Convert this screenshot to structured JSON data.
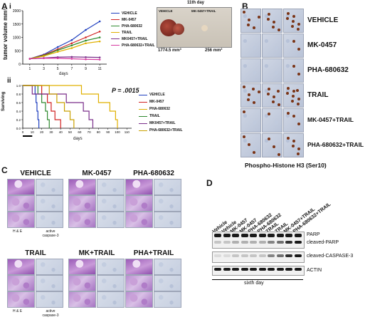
{
  "panel_labels": {
    "A": "A",
    "i": "i",
    "ii": "ii",
    "B": "B",
    "C": "C",
    "D": "D"
  },
  "panel_a_i": {
    "chart_data": {
      "type": "line",
      "ylabel": "tumor volume mm³",
      "xlabel": "days",
      "x": [
        1,
        3,
        5,
        7,
        9,
        11
      ],
      "ylim": [
        0,
        2000
      ],
      "yticks": [
        "0",
        "500",
        "1000",
        "1500",
        "2000"
      ],
      "series": [
        {
          "name": "VEHICLE",
          "color": "#1f3fbf",
          "values": [
            200,
            360,
            640,
            900,
            1280,
            1600
          ]
        },
        {
          "name": "MK-0457",
          "color": "#d12222",
          "values": [
            200,
            340,
            560,
            780,
            1000,
            1220
          ]
        },
        {
          "name": "PHA-680632",
          "color": "#2f8a2f",
          "values": [
            200,
            320,
            520,
            700,
            880,
            1000
          ]
        },
        {
          "name": "TRAIL",
          "color": "#e0b000",
          "values": [
            200,
            300,
            460,
            600,
            780,
            850
          ]
        },
        {
          "name": "MK0457+TRAIL",
          "color": "#7a2e8a",
          "values": [
            200,
            230,
            260,
            270,
            260,
            250
          ]
        },
        {
          "name": "PHA-680632+TRAIL",
          "color": "#d63aa0",
          "values": [
            200,
            220,
            220,
            200,
            180,
            170
          ]
        }
      ]
    },
    "photo_title": "11th day",
    "photo_left_label": "VEHICLE",
    "photo_right_label": "MK-0457+TRAIL",
    "vol_left": "1774.5 mm³",
    "vol_right": "256 mm³"
  },
  "panel_a_ii": {
    "chart_data": {
      "type": "line",
      "ylabel": "Surviving",
      "xlabel": "days",
      "x_ticks": [
        "0",
        "10",
        "20",
        "30",
        "40",
        "50",
        "60",
        "70",
        "80",
        "90",
        "100",
        "110"
      ],
      "y_ticks": [
        "0.0",
        "0.2",
        "0.4",
        "0.6",
        "0.8",
        "1.0"
      ],
      "annotation": "P = .0015",
      "series": [
        {
          "name": "VEHICLE",
          "color": "#1f3fbf",
          "steps": [
            [
              0,
              1
            ],
            [
              12,
              1
            ],
            [
              13,
              0.8
            ],
            [
              14,
              0.6
            ],
            [
              15,
              0.4
            ],
            [
              16,
              0.2
            ],
            [
              17,
              0
            ]
          ]
        },
        {
          "name": "MK-0457",
          "color": "#d12222",
          "steps": [
            [
              0,
              1
            ],
            [
              18,
              1
            ],
            [
              20,
              0.8
            ],
            [
              26,
              0.6
            ],
            [
              30,
              0.4
            ],
            [
              34,
              0.2
            ],
            [
              40,
              0
            ]
          ]
        },
        {
          "name": "PHA-680632",
          "color": "#e0b000",
          "steps": [
            [
              0,
              1
            ],
            [
              58,
              1
            ],
            [
              62,
              0.8
            ],
            [
              80,
              0.6
            ],
            [
              92,
              0.4
            ],
            [
              98,
              0.2
            ],
            [
              100,
              0
            ]
          ]
        },
        {
          "name": "TRAIL",
          "color": "#2f8a2f",
          "steps": [
            [
              0,
              1
            ],
            [
              14,
              1
            ],
            [
              16,
              0.8
            ],
            [
              20,
              0.6
            ],
            [
              24,
              0.4
            ],
            [
              26,
              0.2
            ],
            [
              28,
              0
            ]
          ]
        },
        {
          "name": "MK0457+TRAIL",
          "color": "#7a2e8a",
          "steps": [
            [
              0,
              1
            ],
            [
              8,
              1
            ],
            [
              10,
              0.8
            ],
            [
              46,
              0.6
            ],
            [
              64,
              0.4
            ],
            [
              70,
              0.2
            ],
            [
              74,
              0
            ]
          ]
        },
        {
          "name": "PHA-680632+TRAIL",
          "color": "#c9a000",
          "steps": [
            [
              0,
              1
            ],
            [
              22,
              1
            ],
            [
              28,
              0.8
            ],
            [
              36,
              0.6
            ],
            [
              44,
              0.4
            ],
            [
              50,
              0.2
            ],
            [
              54,
              0
            ]
          ]
        }
      ]
    }
  },
  "panel_b": {
    "rows": [
      "VEHICLE",
      "MK-0457",
      "PHA-680632",
      "TRAIL",
      "MK-0457+TRAIL",
      "PHA-680632+TRAIL"
    ],
    "caption": "Phospho-Histone H3 (Ser10)"
  },
  "panel_c": {
    "groups": [
      {
        "title": "VEHICLE",
        "left_label": "H & E",
        "right_label": "active caspase-3"
      },
      {
        "title": "MK-0457"
      },
      {
        "title": "PHA-680632"
      },
      {
        "title": "TRAIL",
        "left_label": "H & E",
        "right_label": "active caspase-3"
      },
      {
        "title": "MK+TRAIL"
      },
      {
        "title": "PHA+TRAIL"
      }
    ]
  },
  "panel_d": {
    "lanes": [
      "Vehicle",
      "Vehicle",
      "MK-0457",
      "MK-0457",
      "PHA-680632",
      "PHA-680632",
      "TRAIL",
      "TRAIL",
      "MK-0457+TRAIL",
      "PHA-680632+TRAIL"
    ],
    "blots": [
      "PARP",
      "cleaved-PARP",
      "cleaved-CASPASE-3",
      "ACTIN"
    ],
    "footer": "sixth day"
  }
}
